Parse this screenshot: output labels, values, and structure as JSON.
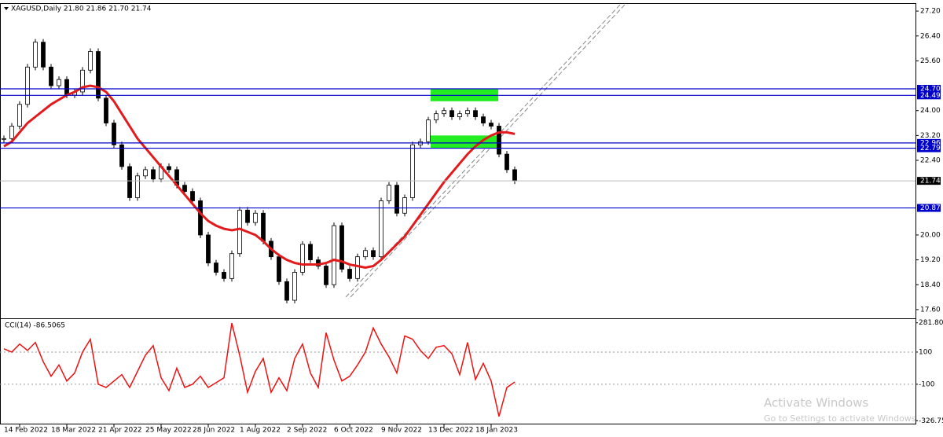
{
  "chart_data": {
    "type": "candlestick",
    "title": "XAGUSD,Daily  21.80 21.86 21.70 21.74",
    "categories": [
      null,
      null,
      "14 Feb 2022",
      null,
      null,
      null,
      null,
      null,
      "18 Mar 2022",
      null,
      null,
      null,
      null,
      null,
      "21 Apr 2022",
      null,
      null,
      null,
      null,
      null,
      "25 May 2022",
      null,
      null,
      null,
      null,
      null,
      "28 Jun 2022",
      null,
      null,
      null,
      null,
      null,
      "1 Aug 2022",
      null,
      null,
      null,
      null,
      null,
      "2 Sep 2022",
      null,
      null,
      null,
      null,
      null,
      "6 Oct 2022",
      null,
      null,
      null,
      null,
      null,
      "9 Nov 2022",
      null,
      null,
      null,
      null,
      null,
      "13 Dec 2022",
      null,
      null,
      null,
      null,
      null,
      "18 Jan 2023",
      null,
      null,
      null
    ],
    "series": [
      {
        "name": "XAGUSD",
        "color": "#000000",
        "values": [
          23.1,
          23.5,
          24.2,
          25.4,
          26.2,
          25.4,
          24.8,
          25.0,
          24.5,
          24.6,
          25.3,
          25.9,
          24.4,
          23.6,
          22.9,
          22.2,
          21.2,
          21.9,
          22.1,
          21.8,
          22.2,
          22.1,
          21.6,
          21.4,
          21.1,
          20.0,
          19.1,
          18.8,
          18.6,
          19.4,
          20.8,
          20.4,
          20.7,
          19.8,
          19.3,
          18.5,
          17.9,
          18.8,
          19.7,
          19.2,
          19.0,
          18.4,
          20.3,
          18.9,
          18.6,
          19.3,
          19.5,
          19.3,
          21.1,
          21.6,
          20.7,
          21.2,
          22.9,
          23.0,
          23.7,
          23.9,
          24.0,
          23.8,
          23.9,
          24.0,
          23.8,
          23.6,
          23.5,
          22.6,
          22.1,
          21.74
        ]
      },
      {
        "name": "MA",
        "color": "#e31a1c",
        "values": [
          22.85,
          23.0,
          23.3,
          23.6,
          23.8,
          24.0,
          24.2,
          24.35,
          24.5,
          24.6,
          24.75,
          24.8,
          24.75,
          24.6,
          24.3,
          23.9,
          23.5,
          23.1,
          22.8,
          22.5,
          22.2,
          21.9,
          21.6,
          21.3,
          21.0,
          20.7,
          20.45,
          20.3,
          20.2,
          20.15,
          20.2,
          20.1,
          20.0,
          19.8,
          19.55,
          19.35,
          19.2,
          19.1,
          19.05,
          19.05,
          19.05,
          19.1,
          19.2,
          19.15,
          19.05,
          19.0,
          18.95,
          19.0,
          19.2,
          19.45,
          19.7,
          19.95,
          20.3,
          20.65,
          21.0,
          21.35,
          21.7,
          22.0,
          22.3,
          22.6,
          22.85,
          23.05,
          23.2,
          23.3,
          23.3,
          23.25
        ]
      }
    ],
    "ylim": [
      17.32,
      27.43
    ],
    "yticks": [
      {
        "value": 27.2,
        "label": "27.20"
      },
      {
        "value": 26.4,
        "label": "26.40"
      },
      {
        "value": 25.6,
        "label": "25.60"
      },
      {
        "value": 24.0,
        "label": "24.00"
      },
      {
        "value": 23.2,
        "label": "23.20"
      },
      {
        "value": 22.4,
        "label": "22.40"
      },
      {
        "value": 20.0,
        "label": "20.00"
      },
      {
        "value": 19.2,
        "label": "19.20"
      },
      {
        "value": 18.4,
        "label": "18.40"
      },
      {
        "value": 17.6,
        "label": "17.60"
      }
    ],
    "levels": [
      {
        "value": 24.7,
        "label": "24.70"
      },
      24.49,
      22.96,
      22.79,
      20.87
    ],
    "level_color": "#0000cc",
    "current_price": 21.74,
    "zones": [
      [
        24.7,
        24.3
      ],
      [
        23.2,
        22.79
      ]
    ],
    "zone_color": "#22ee22",
    "indicator": {
      "title": "CCI(14) -86.5065",
      "color": "#ee1111",
      "values": [
        120,
        100,
        150,
        110,
        160,
        40,
        -50,
        20,
        -80,
        -30,
        100,
        180,
        -100,
        -120,
        -80,
        -40,
        -120,
        -20,
        80,
        140,
        -60,
        -140,
        0,
        -120,
        -100,
        -50,
        -120,
        -90,
        -60,
        280,
        80,
        -150,
        -20,
        60,
        -150,
        -60,
        -140,
        60,
        150,
        -30,
        -120,
        220,
        50,
        -80,
        -50,
        20,
        100,
        250,
        150,
        70,
        -30,
        200,
        180,
        110,
        60,
        130,
        140,
        90,
        -40,
        160,
        -70,
        30,
        -80,
        -300,
        -120,
        -86.5065
      ],
      "ylim": [
        -340,
        300
      ],
      "yticks": [
        281.803,
        100,
        -100,
        -326.755
      ]
    },
    "watermark": [
      "Activate Windows",
      "Go to Settings to activate Windows."
    ]
  }
}
